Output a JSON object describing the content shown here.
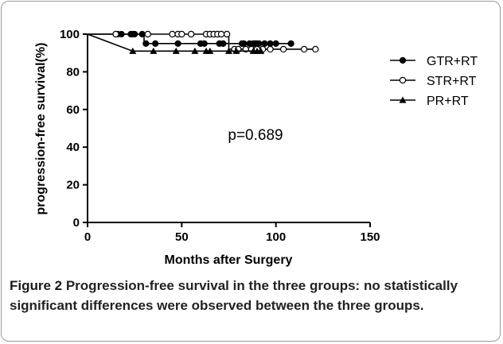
{
  "chart_data": {
    "type": "line",
    "subtype": "kaplan-meier-step",
    "xlabel": "Months after Surgery",
    "ylabel": "progression-free survival(%)",
    "xlim": [
      0,
      150
    ],
    "ylim": [
      0,
      100
    ],
    "x_ticks": [
      "0",
      "50",
      "100",
      "150"
    ],
    "y_ticks": [
      "0",
      "20",
      "40",
      "60",
      "80",
      "100"
    ],
    "grid": false,
    "legend_position": "top-right",
    "annotations": [
      "p=0.689"
    ],
    "series": [
      {
        "name": "GTR+RT",
        "marker": "filled-circle",
        "color": "#000000",
        "steps": [
          [
            0,
            100
          ],
          [
            30,
            100
          ],
          [
            30,
            95
          ],
          [
            108,
            95
          ]
        ],
        "censored": [
          [
            16,
            100
          ],
          [
            18,
            100
          ],
          [
            23,
            100
          ],
          [
            24,
            100
          ],
          [
            25,
            100
          ],
          [
            29,
            100
          ],
          [
            31,
            95
          ],
          [
            36,
            95
          ],
          [
            48,
            95
          ],
          [
            60,
            95
          ],
          [
            62,
            95
          ],
          [
            70,
            95
          ],
          [
            72,
            95
          ],
          [
            82,
            95
          ],
          [
            83,
            95
          ],
          [
            86,
            95
          ],
          [
            88,
            95
          ],
          [
            89,
            95
          ],
          [
            90,
            95
          ],
          [
            91,
            95
          ],
          [
            94,
            95
          ],
          [
            97,
            95
          ],
          [
            100,
            95
          ],
          [
            108,
            95
          ]
        ]
      },
      {
        "name": "STR+RT",
        "marker": "open-circle",
        "color": "#000000",
        "steps": [
          [
            0,
            100
          ],
          [
            75,
            100
          ],
          [
            75,
            92
          ],
          [
            121,
            92
          ]
        ],
        "censored": [
          [
            15,
            100
          ],
          [
            32,
            100
          ],
          [
            45,
            100
          ],
          [
            48,
            100
          ],
          [
            50,
            100
          ],
          [
            55,
            100
          ],
          [
            63,
            100
          ],
          [
            65,
            100
          ],
          [
            67,
            100
          ],
          [
            69,
            100
          ],
          [
            71,
            100
          ],
          [
            74,
            100
          ],
          [
            78,
            92
          ],
          [
            80,
            92
          ],
          [
            84,
            92
          ],
          [
            87,
            92
          ],
          [
            90,
            92
          ],
          [
            93,
            92
          ],
          [
            97,
            92
          ],
          [
            104,
            92
          ],
          [
            115,
            92
          ],
          [
            121,
            92
          ]
        ]
      },
      {
        "name": "PR+RT",
        "marker": "filled-triangle",
        "color": "#000000",
        "steps": [
          [
            0,
            100
          ],
          [
            24,
            91
          ],
          [
            92,
            91
          ]
        ],
        "censored": [
          [
            24,
            91
          ],
          [
            35,
            91
          ],
          [
            47,
            91
          ],
          [
            57,
            91
          ],
          [
            63,
            91
          ],
          [
            65,
            91
          ],
          [
            75,
            91
          ],
          [
            79,
            91
          ],
          [
            88,
            91
          ],
          [
            90,
            91
          ],
          [
            92,
            91
          ]
        ]
      }
    ]
  },
  "caption": {
    "label": "Figure 2",
    "text": " Progression-free survival in the three groups: no statistically significant differences were observed between the three groups."
  }
}
